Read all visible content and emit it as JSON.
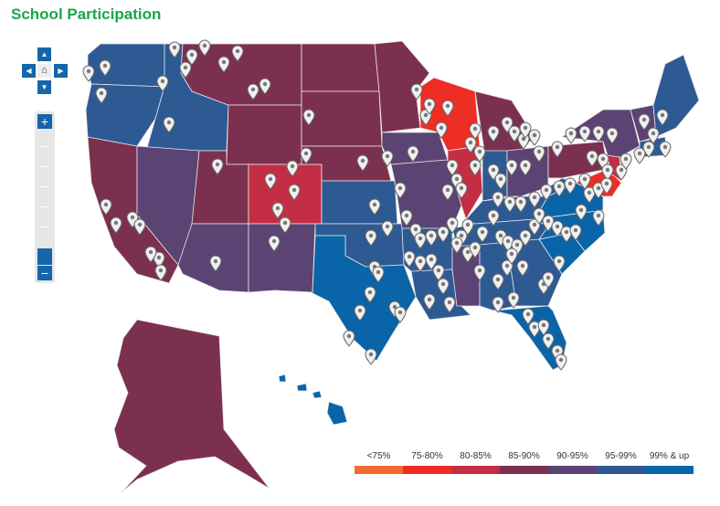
{
  "title": "School Participation",
  "colors": {
    "lt75": "#f26a30",
    "b75_80": "#ee2d24",
    "b80_85": "#c42e44",
    "b85_90": "#7c3050",
    "b90_95": "#5b4373",
    "b95_99": "#2e5a94",
    "b99up": "#0a64a8",
    "pin": "#f0f0f0"
  },
  "nav": {
    "up": "▲",
    "down": "▼",
    "left": "◀",
    "right": "▶",
    "home": "⌂",
    "zoom_in": "+",
    "zoom_out": "−"
  },
  "legend": [
    {
      "label": "<75%",
      "color": "#f26a30"
    },
    {
      "label": "75-80%",
      "color": "#ee2d24"
    },
    {
      "label": "80-85%",
      "color": "#c42e44"
    },
    {
      "label": "85-90%",
      "color": "#7c3050"
    },
    {
      "label": "90-95%",
      "color": "#5b4373"
    },
    {
      "label": "95-99%",
      "color": "#2e5a94"
    },
    {
      "label": "99% & up",
      "color": "#0a64a8"
    }
  ]
}
